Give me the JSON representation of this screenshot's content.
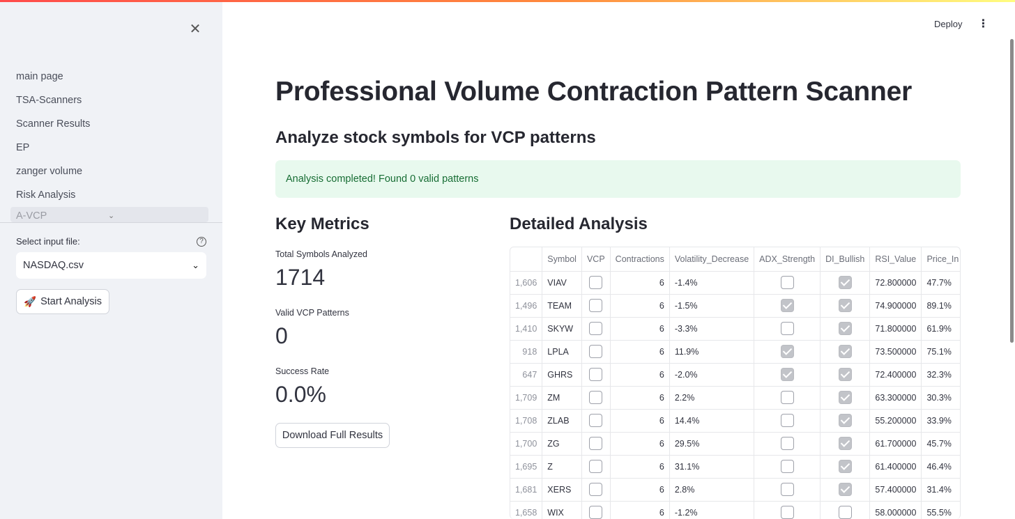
{
  "sidebar": {
    "nav": [
      "main page",
      "TSA-Scanners",
      "Scanner Results",
      "EP",
      "zanger volume",
      "Risk Analysis"
    ],
    "nav_active": "A-VCP",
    "select_label": "Select input file:",
    "select_value": "NASDAQ.csv",
    "start_button": "Start Analysis"
  },
  "header": {
    "deploy": "Deploy"
  },
  "main": {
    "title": "Professional Volume Contraction Pattern Scanner",
    "subtitle": "Analyze stock symbols for VCP patterns",
    "alert": "Analysis completed! Found 0 valid patterns",
    "metrics_title": "Key Metrics",
    "metrics": [
      {
        "label": "Total Symbols Analyzed",
        "value": "1714"
      },
      {
        "label": "Valid VCP Patterns",
        "value": "0"
      },
      {
        "label": "Success Rate",
        "value": "0.0%"
      }
    ],
    "download_button": "Download Full Results",
    "table_title": "Detailed Analysis"
  },
  "table": {
    "columns": [
      "",
      "Symbol",
      "VCP",
      "Contractions",
      "Volatility_Decrease",
      "ADX_Strength",
      "DI_Bullish",
      "RSI_Value",
      "Price_In"
    ],
    "rows": [
      {
        "idx": "1,606",
        "symbol": "VIAV",
        "vcp": false,
        "contractions": "6",
        "vol_dec": "-1.4%",
        "adx": false,
        "di": true,
        "rsi": "72.800000",
        "price": "47.7%"
      },
      {
        "idx": "1,496",
        "symbol": "TEAM",
        "vcp": false,
        "contractions": "6",
        "vol_dec": "-1.5%",
        "adx": true,
        "di": true,
        "rsi": "74.900000",
        "price": "89.1%"
      },
      {
        "idx": "1,410",
        "symbol": "SKYW",
        "vcp": false,
        "contractions": "6",
        "vol_dec": "-3.3%",
        "adx": false,
        "di": true,
        "rsi": "71.800000",
        "price": "61.9%"
      },
      {
        "idx": "918",
        "symbol": "LPLA",
        "vcp": false,
        "contractions": "6",
        "vol_dec": "11.9%",
        "adx": true,
        "di": true,
        "rsi": "73.500000",
        "price": "75.1%"
      },
      {
        "idx": "647",
        "symbol": "GHRS",
        "vcp": false,
        "contractions": "6",
        "vol_dec": "-2.0%",
        "adx": true,
        "di": true,
        "rsi": "72.400000",
        "price": "32.3%"
      },
      {
        "idx": "1,709",
        "symbol": "ZM",
        "vcp": false,
        "contractions": "6",
        "vol_dec": "2.2%",
        "adx": false,
        "di": true,
        "rsi": "63.300000",
        "price": "30.3%"
      },
      {
        "idx": "1,708",
        "symbol": "ZLAB",
        "vcp": false,
        "contractions": "6",
        "vol_dec": "14.4%",
        "adx": false,
        "di": true,
        "rsi": "55.200000",
        "price": "33.9%"
      },
      {
        "idx": "1,700",
        "symbol": "ZG",
        "vcp": false,
        "contractions": "6",
        "vol_dec": "29.5%",
        "adx": false,
        "di": true,
        "rsi": "61.700000",
        "price": "45.7%"
      },
      {
        "idx": "1,695",
        "symbol": "Z",
        "vcp": false,
        "contractions": "6",
        "vol_dec": "31.1%",
        "adx": false,
        "di": true,
        "rsi": "61.400000",
        "price": "46.4%"
      },
      {
        "idx": "1,681",
        "symbol": "XERS",
        "vcp": false,
        "contractions": "6",
        "vol_dec": "2.8%",
        "adx": false,
        "di": true,
        "rsi": "57.400000",
        "price": "31.4%"
      },
      {
        "idx": "1,658",
        "symbol": "WIX",
        "vcp": false,
        "contractions": "6",
        "vol_dec": "-1.2%",
        "adx": false,
        "di": false,
        "rsi": "58.000000",
        "price": "55.5%"
      }
    ]
  }
}
